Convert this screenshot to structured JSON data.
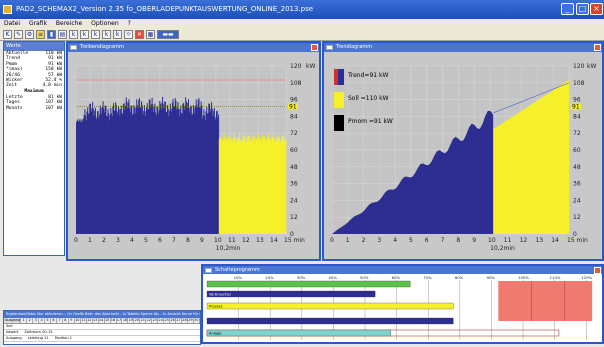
{
  "window": {
    "title": "PAD2_SCHEMAX2_Version 2.35 fo_OBERLADEPUNKTAUSWERTUNG_ONLINE_2013.pse"
  },
  "menu": [
    "Datei",
    "Grafik",
    "Bereiche",
    "Optionen",
    "?"
  ],
  "toolbar_icons": [
    "k-tool-icon",
    "pen-icon",
    "tool-icon",
    "ruler-icon",
    "chart-icon",
    "table-icon",
    "k-icon",
    "k-icon",
    "k-icon",
    "k-icon",
    "k-icon",
    "gear-icon",
    "x-icon",
    "x-icon",
    "grid-icon",
    "bars-icon"
  ],
  "status": {
    "title": "Werte",
    "rows": [
      {
        "label": "Aktuelle",
        "value": "110 kW"
      },
      {
        "label": "Trend",
        "value": "91 kW"
      },
      {
        "label": "Pmom",
        "value": "91 kW"
      },
      {
        "label": "*(max)",
        "value": "150 kW"
      },
      {
        "label": "26/46",
        "value": "57 kW"
      },
      {
        "label": "Wicker",
        "value": "52,4 %"
      },
      {
        "label": "Zeit",
        "value": "4,8 min"
      }
    ],
    "section": "Maximum",
    "rows2": [
      {
        "label": "Letzte",
        "value": "81 kW"
      },
      {
        "label": "Tages",
        "value": "107 kW"
      },
      {
        "label": "Monats",
        "value": "107 kW"
      }
    ]
  },
  "trend_window": {
    "title": "Treibendiagramm",
    "y_unit": "kW",
    "y_ticks": [
      "0",
      "12",
      "24",
      "36",
      "48",
      "60",
      "72",
      "84",
      "96",
      "108",
      "120"
    ],
    "highlight_value": "91",
    "x_ticks": [
      "0",
      "1",
      "2",
      "3",
      "4",
      "5",
      "6",
      "7",
      "8",
      "9",
      "10",
      "11",
      "12",
      "13",
      "14",
      "15 min"
    ],
    "x_label": "10,2min",
    "blue_cutoff_min": 10.2,
    "colors": {
      "blue": "#2d2d92",
      "yellow": "#f6f02a",
      "grid": "#a0a0a0",
      "limit": "#e03030"
    }
  },
  "ramp_window": {
    "title": "Trendiagramm",
    "legend": [
      {
        "text": "Trend=91 kW",
        "color": "#2d2d92"
      },
      {
        "text": "Soll =110 kW",
        "color": "#f6f02a"
      },
      {
        "text": "Pmom =91 kW",
        "color": "#000000"
      }
    ],
    "y_unit": "kW",
    "y_ticks": [
      "0",
      "12",
      "24",
      "36",
      "48",
      "60",
      "72",
      "84",
      "96",
      "108",
      "120"
    ],
    "highlight_value": "91",
    "x_ticks": [
      "0",
      "1",
      "2",
      "3",
      "4",
      "5",
      "6",
      "7",
      "8",
      "9",
      "10",
      "11",
      "12",
      "13",
      "14",
      "15 min"
    ],
    "x_label": "10,2min"
  },
  "load_window": {
    "title": "Schalteprogramm",
    "scale": [
      "10%",
      "20%",
      "30%",
      "40%",
      "50%",
      "60%",
      "70%",
      "80%",
      "90%",
      "100%",
      "110%",
      "120%"
    ],
    "bars": [
      {
        "label": "",
        "fraction": 0.52,
        "color": "#5cc14a"
      },
      {
        "label": "Verbraucher",
        "fraction": 0.43,
        "color": "#2d2d92"
      },
      {
        "label": "Prozess",
        "fraction": 0.63,
        "color": "#f6f02a"
      },
      {
        "label": "",
        "fraction": 0.63,
        "color": "#2d2d92"
      },
      {
        "label": "Anlage",
        "fraction": 0.47,
        "color": "#7dd4cf"
      }
    ]
  },
  "event_window": {
    "title": "Ergebnisse/Tabs: Nur aktivieren... (in Grafik Betr. des Abschnitt - in Tabelle Sperre Ab... In Ansicht Kurve für den Verlauf...)",
    "header_label": "Ausgang",
    "columns": [
      "1",
      "2",
      "3",
      "4",
      "5",
      "6",
      "7",
      "8",
      "9",
      "10",
      "11",
      "12",
      "13",
      "14",
      "15",
      "16",
      "17",
      "18",
      "19",
      "20",
      "21",
      "22",
      "23",
      "24",
      "25",
      "26",
      "27",
      "28",
      "29",
      "30"
    ],
    "lines": [
      {
        "a": "Soll",
        "b": "",
        "c": ""
      },
      {
        "a": "Istwert",
        "b": "Zeitraum 00-15",
        "c": ""
      },
      {
        "a": "Ausgang",
        "b": "Leistung 11",
        "c": "Position 1"
      }
    ]
  }
}
